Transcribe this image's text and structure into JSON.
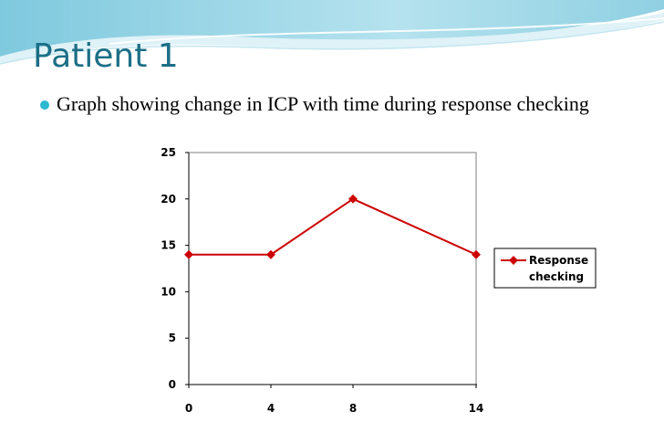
{
  "slide": {
    "title": "Patient 1",
    "bullet": "Graph showing change in ICP with time during response checking"
  },
  "colors": {
    "title": "#1b6f86",
    "bullet": "#2db9d0",
    "series": "#cc0000"
  },
  "chart_data": {
    "type": "line",
    "title": "",
    "xlabel": "",
    "ylabel": "",
    "categories": [
      "0",
      "4",
      "8",
      "14"
    ],
    "series": [
      {
        "name": "Response checking",
        "values": [
          14,
          14,
          20,
          14
        ]
      }
    ],
    "ylim": [
      0,
      25
    ],
    "yticks": [
      0,
      5,
      10,
      15,
      20,
      25
    ],
    "grid": false,
    "legend": "right",
    "marker": "diamond"
  }
}
